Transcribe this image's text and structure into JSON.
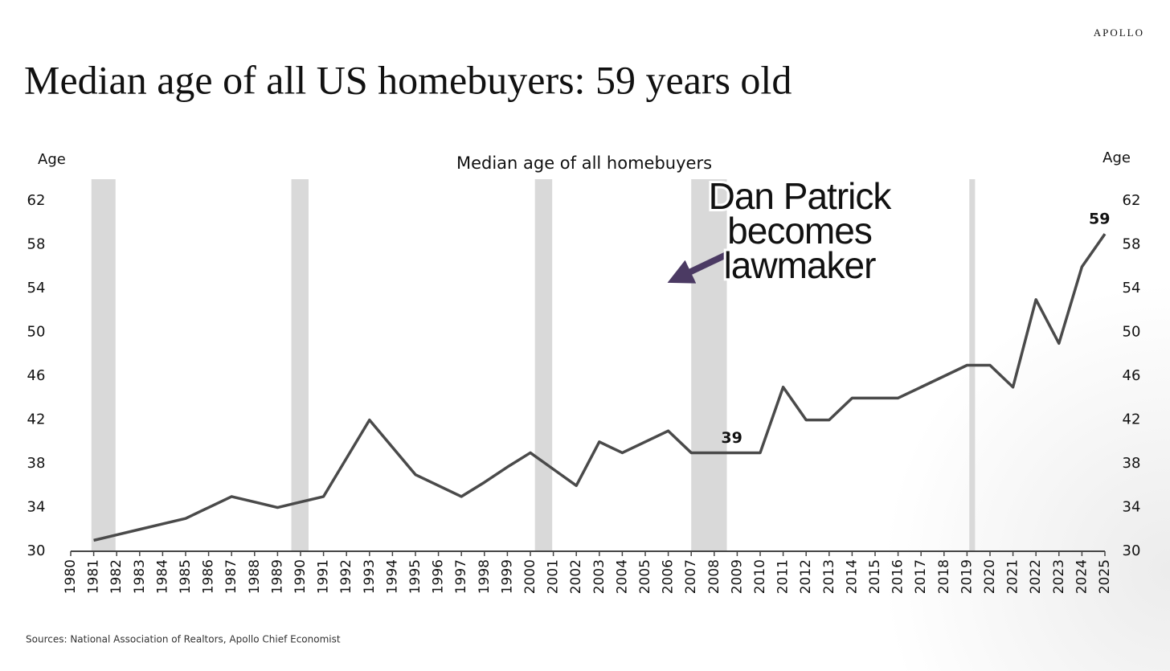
{
  "brand": "APOLLO",
  "chart_data": {
    "type": "line",
    "title": "Median age of all US homebuyers: 59 years old",
    "subtitle": "Median age of all homebuyers",
    "y_label": "Age",
    "y2_label": "Age",
    "source": "Sources: National Association of Realtors, Apollo Chief Economist",
    "x": [
      1981,
      1982,
      1983,
      1984,
      1985,
      1986,
      1987,
      1988,
      1989,
      1990,
      1991,
      1992,
      1993,
      1994,
      1995,
      1996,
      1997,
      1998,
      1999,
      2000,
      2001,
      2002,
      2003,
      2004,
      2005,
      2006,
      2007,
      2008,
      2009,
      2010,
      2011,
      2012,
      2013,
      2014,
      2015,
      2016,
      2017,
      2018,
      2019,
      2020,
      2021,
      2022,
      2023,
      2024,
      2025
    ],
    "series": [
      {
        "name": "Median age",
        "color": "#4a4a4a",
        "values": [
          31,
          31.5,
          32,
          32.5,
          33,
          34,
          35,
          34.5,
          34,
          34.5,
          35,
          38.5,
          42,
          39.5,
          37,
          36,
          35,
          36.3,
          37.7,
          39,
          37.5,
          36,
          40,
          39,
          40,
          41,
          39,
          39,
          39,
          39,
          45,
          42,
          42,
          44,
          44,
          44,
          45,
          46,
          47,
          47,
          45,
          53,
          49,
          56,
          59
        ],
        "value_labels": [
          null,
          null,
          null,
          null,
          null,
          null,
          null,
          null,
          null,
          null,
          null,
          null,
          null,
          null,
          null,
          null,
          null,
          null,
          null,
          null,
          null,
          null,
          null,
          null,
          null,
          null,
          null,
          null,
          "39",
          null,
          null,
          null,
          null,
          null,
          null,
          null,
          null,
          null,
          null,
          null,
          null,
          null,
          null,
          null,
          "59"
        ]
      }
    ],
    "xlim": [
      1980,
      2025
    ],
    "xticks": [
      1980,
      1981,
      1982,
      1983,
      1984,
      1985,
      1986,
      1987,
      1988,
      1989,
      1990,
      1991,
      1992,
      1993,
      1994,
      1995,
      1996,
      1997,
      1998,
      1999,
      2000,
      2001,
      2002,
      2003,
      2004,
      2005,
      2006,
      2007,
      2008,
      2009,
      2010,
      2011,
      2012,
      2013,
      2014,
      2015,
      2016,
      2017,
      2018,
      2019,
      2020,
      2021,
      2022,
      2023,
      2024,
      2025
    ],
    "ylim": [
      30,
      64
    ],
    "yticks": [
      30,
      34,
      38,
      42,
      46,
      50,
      54,
      58,
      62
    ],
    "y2lim": [
      30,
      64
    ],
    "y2ticks": [
      30,
      34,
      38,
      42,
      46,
      50,
      54,
      58,
      62
    ],
    "shaded_periods": [
      [
        1980.9,
        1981.95
      ],
      [
        1989.6,
        1990.35
      ],
      [
        2000.2,
        2000.95
      ],
      [
        2007,
        2008.55
      ],
      [
        2019.1,
        2019.35
      ]
    ],
    "shade_color": "#d9d9d9",
    "highlight_x": 2006,
    "annotation_lines": [
      "Dan Patrick",
      "becomes",
      "lawmaker"
    ]
  }
}
